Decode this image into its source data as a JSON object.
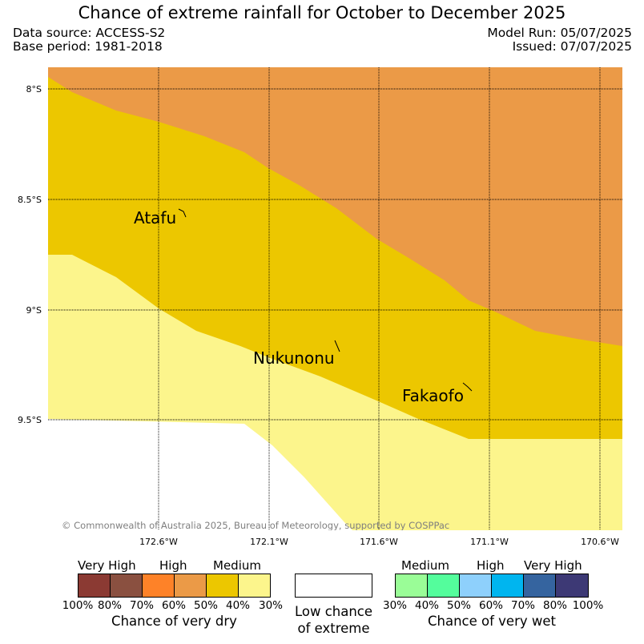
{
  "header": {
    "title": "Chance of extreme rainfall for October to December 2025",
    "data_source": "Data source: ACCESS-S2",
    "base_period": "Base period: 1981-2018",
    "model_run": "Model Run: 05/07/2025",
    "issued": "Issued: 07/07/2025"
  },
  "map": {
    "lat_ticks": [
      "8°S",
      "8.5°S",
      "9°S",
      "9.5°S"
    ],
    "lon_ticks": [
      "172.6°W",
      "172.1°W",
      "171.6°W",
      "171.1°W",
      "170.6°W"
    ],
    "places": [
      "Atafu",
      "Nukunonu",
      "Fakaofo"
    ],
    "copyright": "© Commonwealth of Australia 2025, Bureau of Meteorology, supported by COSPPac",
    "zone_colors": {
      "high_dry": "#eb9a47",
      "medium_dry_dark": "#ecc700",
      "medium_dry_light": "#fcf58c",
      "low": "#ffffff"
    }
  },
  "legend": {
    "dry": {
      "heads": [
        "Very High",
        "High",
        "Medium"
      ],
      "ticks": [
        "100%",
        "80%",
        "70%",
        "60%",
        "50%",
        "40%",
        "30%"
      ],
      "colors": [
        "#8b3a33",
        "#8a5040",
        "#fe8228",
        "#eb9a47",
        "#ecc700",
        "#fcf58c"
      ],
      "caption": "Chance of very dry"
    },
    "low": {
      "caption_line1": "Low chance",
      "caption_line2": "of extreme",
      "color": "#ffffff"
    },
    "wet": {
      "heads": [
        "Medium",
        "High",
        "Very High"
      ],
      "ticks": [
        "30%",
        "40%",
        "50%",
        "60%",
        "70%",
        "80%",
        "100%"
      ],
      "colors": [
        "#9afd97",
        "#54fd9c",
        "#8ed0fc",
        "#00b5ef",
        "#35649f",
        "#3d3975"
      ],
      "caption": "Chance of very wet"
    }
  }
}
